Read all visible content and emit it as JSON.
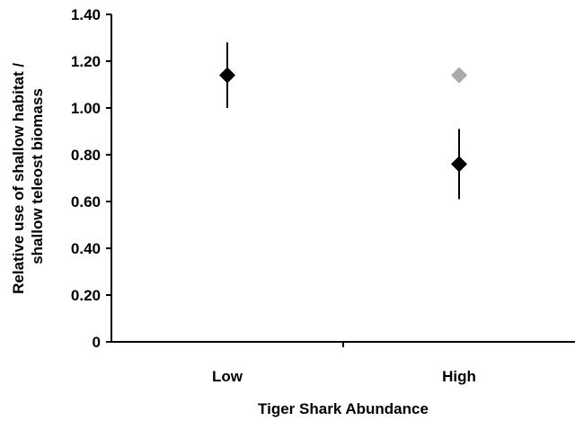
{
  "chart_data": {
    "type": "scatter",
    "title": "",
    "xlabel": "Tiger Shark Abundance",
    "ylabel_lines": [
      "Relative use of shallow habitat /",
      "shallow teleost biomass"
    ],
    "categories": [
      "Low",
      "High"
    ],
    "ylim": [
      0,
      1.4
    ],
    "yticks": [
      0,
      0.2,
      0.4,
      0.6,
      0.8,
      1.0,
      1.2,
      1.4
    ],
    "ytick_labels": [
      "0",
      "0.20",
      "0.40",
      "0.60",
      "0.80",
      "1.00",
      "1.20",
      "1.40"
    ],
    "grid": false,
    "legend": "none",
    "series": [
      {
        "color": "#000000",
        "marker": "diamond",
        "points": [
          {
            "category": "Low",
            "y": 1.14,
            "err_low": 1.0,
            "err_high": 1.28
          },
          {
            "category": "High",
            "y": 0.76,
            "err_low": 0.61,
            "err_high": 0.91
          }
        ]
      },
      {
        "color": "#aaaaaa",
        "marker": "diamond",
        "points": [
          {
            "category": "High",
            "y": 1.14
          }
        ]
      }
    ]
  }
}
